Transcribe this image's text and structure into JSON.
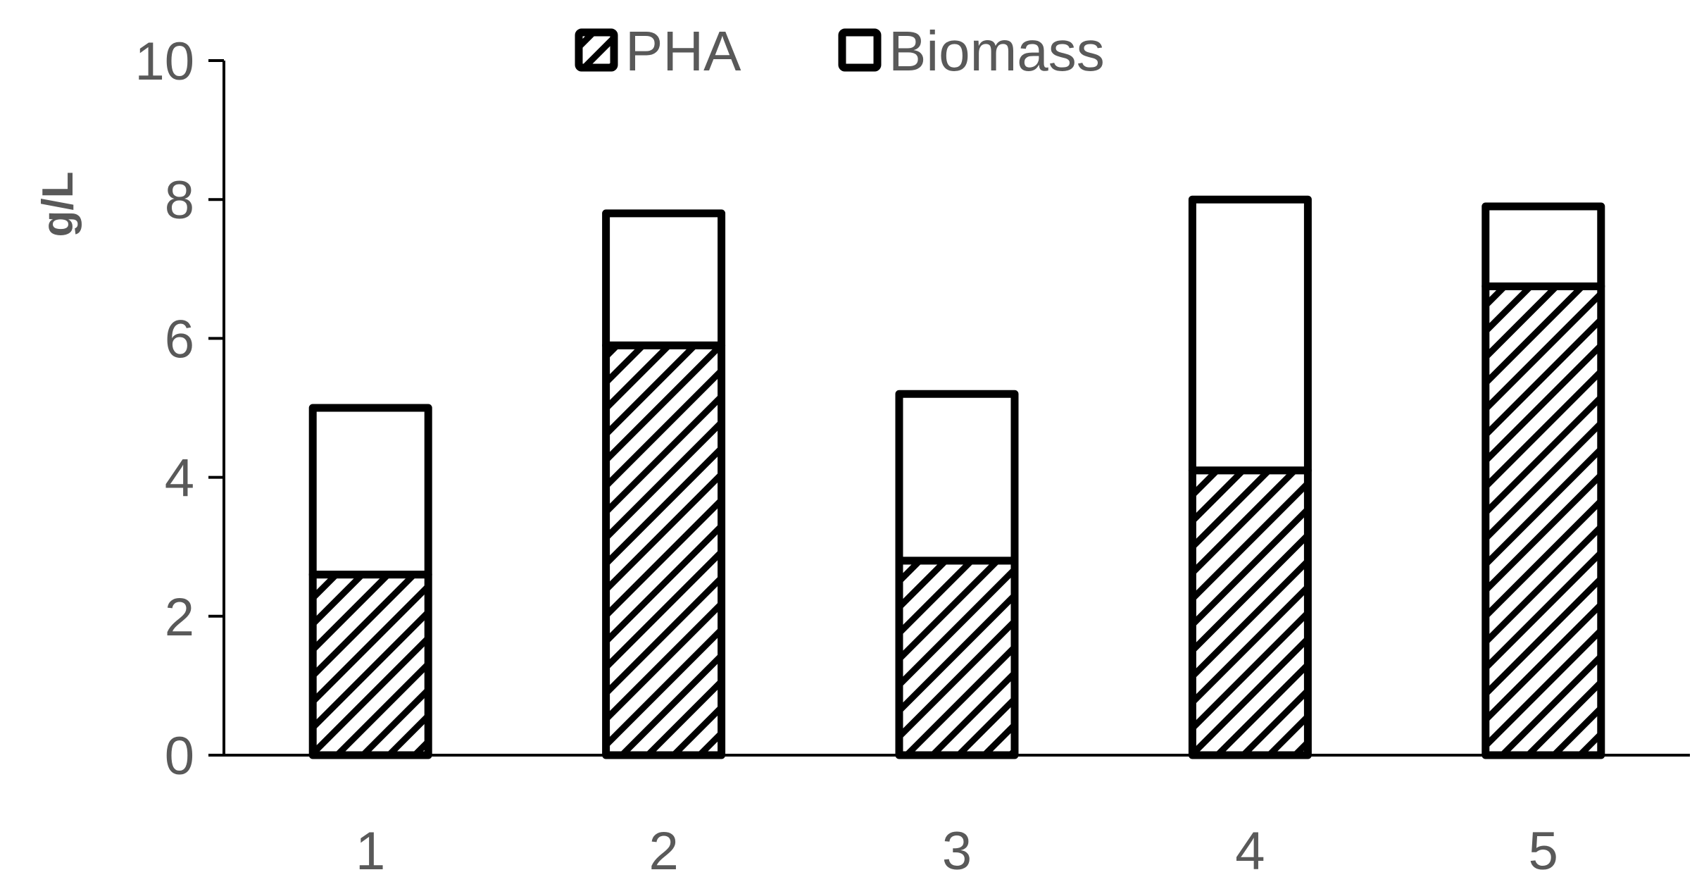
{
  "chart_data": {
    "type": "bar",
    "stacked": true,
    "title": "",
    "xlabel": "",
    "ylabel": "g/L",
    "ylim": [
      0,
      10
    ],
    "yticks": [
      0,
      2,
      4,
      6,
      8,
      10
    ],
    "categories": [
      "1",
      "2",
      "3",
      "4",
      "5"
    ],
    "series": [
      {
        "name": "PHA",
        "pattern": "diagonal-hatch",
        "color": "#000000",
        "values": [
          2.6,
          5.9,
          2.8,
          4.1,
          6.75
        ]
      },
      {
        "name": "Biomass",
        "pattern": "solid",
        "color": "#ffffff",
        "values": [
          2.4,
          1.9,
          2.4,
          3.9,
          1.15
        ]
      }
    ],
    "legend": {
      "position": "top",
      "entries": [
        "PHA",
        "Biomass"
      ]
    },
    "grid": false
  }
}
